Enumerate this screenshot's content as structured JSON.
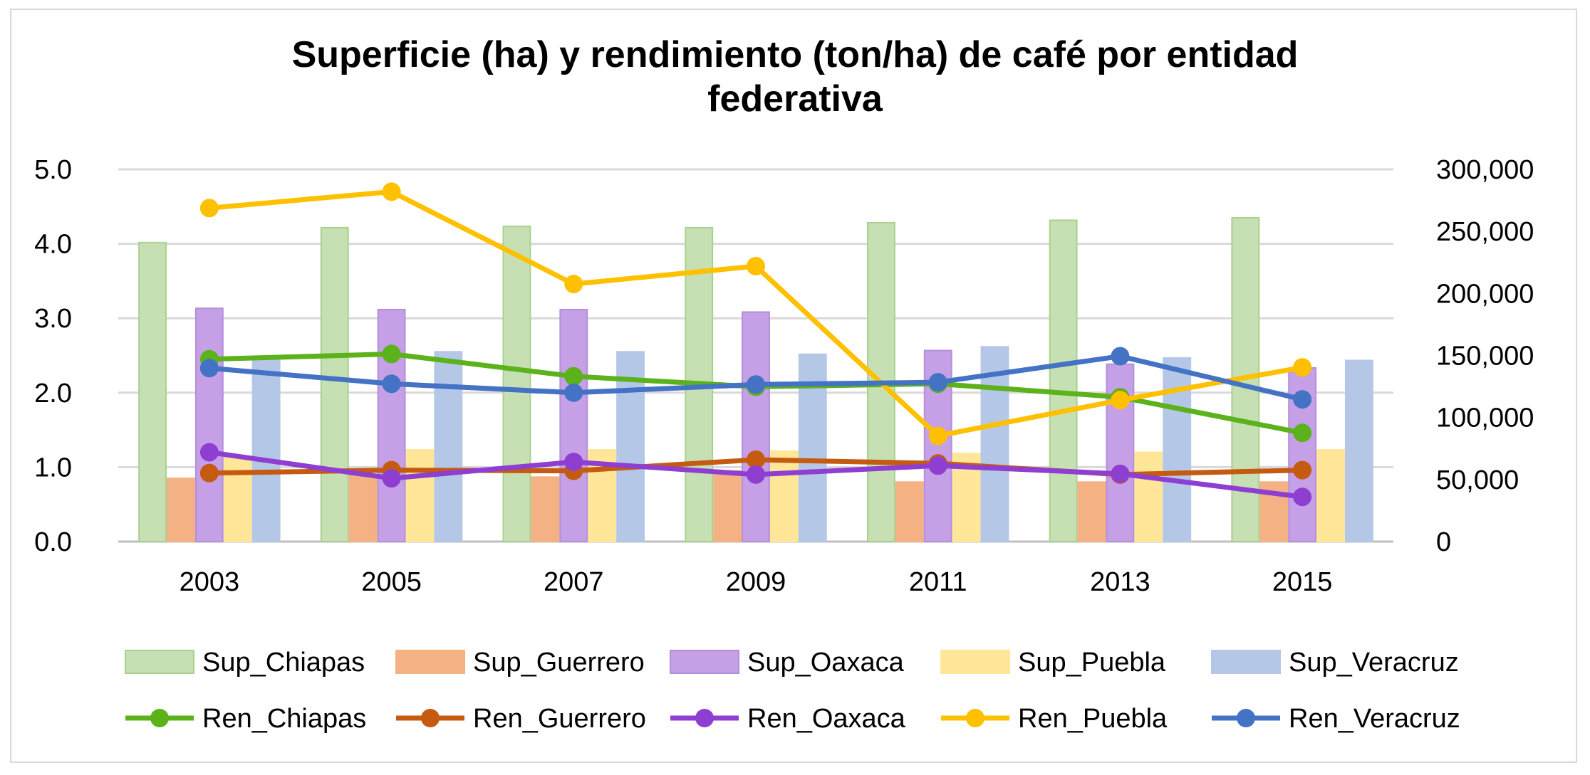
{
  "chart_data": {
    "type": "bar",
    "title_lines": [
      "Superficie (ha) y rendimiento (ton/ha) de café por entidad",
      "federativa"
    ],
    "categories": [
      "2003",
      "2005",
      "2007",
      "2009",
      "2011",
      "2013",
      "2015"
    ],
    "y_left": {
      "min": 0,
      "max": 5,
      "step": 1,
      "tick_labels": [
        "0.0",
        "1.0",
        "2.0",
        "3.0",
        "4.0",
        "5.0"
      ]
    },
    "y_right": {
      "min": 0,
      "max": 300000,
      "step": 50000,
      "tick_labels": [
        "0",
        "50,000",
        "100,000",
        "150,000",
        "200,000",
        "250,000",
        "300,000"
      ]
    },
    "grid": true,
    "legend_position": "bottom",
    "bar_series": [
      {
        "name": "Sup_Chiapas",
        "axis": "right",
        "color": "#c6e0b4",
        "stroke": "#a9d18e",
        "values": [
          241000,
          253000,
          254000,
          253000,
          257000,
          259000,
          261000
        ]
      },
      {
        "name": "Sup_Guerrero",
        "axis": "right",
        "color": "#f4b183",
        "stroke": "#f4b183",
        "values": [
          51000,
          54000,
          52000,
          57000,
          48000,
          48000,
          48000
        ]
      },
      {
        "name": "Sup_Oaxaca",
        "axis": "right",
        "color": "#c5a0e6",
        "stroke": "#b48fd9",
        "values": [
          188000,
          187000,
          187000,
          185000,
          154000,
          143000,
          140000
        ]
      },
      {
        "name": "Sup_Puebla",
        "axis": "right",
        "color": "#ffe699",
        "stroke": "#ffe699",
        "values": [
          68000,
          74000,
          74000,
          73000,
          71000,
          72000,
          74000
        ]
      },
      {
        "name": "Sup_Veracruz",
        "axis": "right",
        "color": "#b4c7e7",
        "stroke": "#b4c7e7",
        "values": [
          146000,
          153000,
          153000,
          151000,
          157000,
          148000,
          146000
        ]
      }
    ],
    "line_series": [
      {
        "name": "Ren_Chiapas",
        "axis": "left",
        "color": "#5bb21a",
        "values": [
          2.45,
          2.52,
          2.22,
          2.08,
          2.12,
          1.94,
          1.46
        ]
      },
      {
        "name": "Ren_Guerrero",
        "axis": "left",
        "color": "#c55a11",
        "values": [
          0.92,
          0.96,
          0.95,
          1.1,
          1.05,
          0.9,
          0.96
        ]
      },
      {
        "name": "Ren_Oaxaca",
        "axis": "left",
        "color": "#8e3fd1",
        "values": [
          1.2,
          0.85,
          1.07,
          0.9,
          1.02,
          0.91,
          0.6
        ]
      },
      {
        "name": "Ren_Puebla",
        "axis": "left",
        "color": "#ffc000",
        "values": [
          4.48,
          4.7,
          3.46,
          3.7,
          1.42,
          1.9,
          2.34
        ]
      },
      {
        "name": "Ren_Veracruz",
        "axis": "left",
        "color": "#4472c4",
        "values": [
          2.33,
          2.12,
          2.0,
          2.11,
          2.14,
          2.49,
          1.91
        ]
      }
    ]
  }
}
